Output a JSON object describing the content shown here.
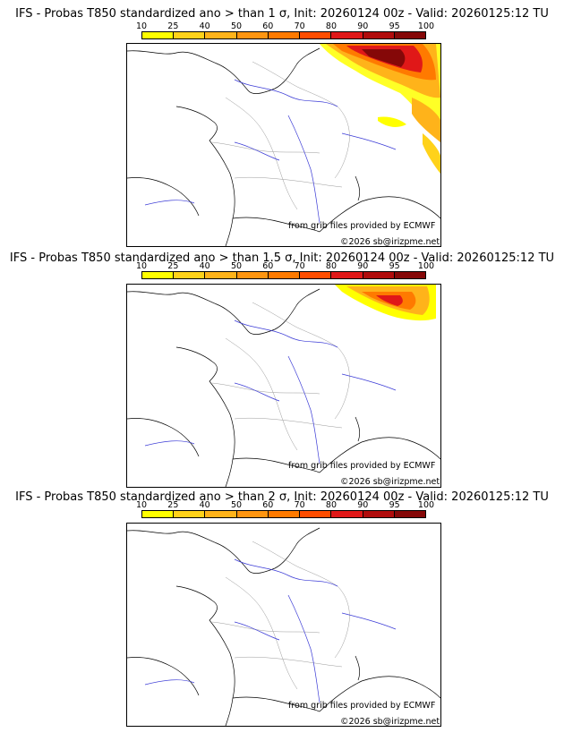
{
  "colorbar": {
    "ticks": [
      "10",
      "25",
      "40",
      "50",
      "60",
      "70",
      "80",
      "90",
      "95",
      "100"
    ],
    "colors": [
      "#ffff00",
      "#ffd21a",
      "#ffb31a",
      "#ff9510",
      "#ff7a00",
      "#ff4d00",
      "#e01818",
      "#b00c0c",
      "#850808"
    ]
  },
  "panels": [
    {
      "title": "IFS - Probas T850  standardized ano > than 1 σ, Init: 20260124 00z - Valid: 20260125:12 TU",
      "credit_source": "from grib files provided by ECMWF",
      "credit_copyright": "©2026 sb@irizpme.net"
    },
    {
      "title": "IFS - Probas T850  standardized ano > than 1.5 σ, Init: 20260124 00z - Valid: 20260125:12 TU",
      "credit_source": "from grib files provided by ECMWF",
      "credit_copyright": "©2026 sb@irizpme.net"
    },
    {
      "title": "IFS - Probas T850  standardized ano > than 2 σ, Init: 20260124 00z - Valid: 20260125:12 TU",
      "credit_source": "from grib files provided by ECMWF",
      "credit_copyright": "©2026 sb@irizpme.net"
    }
  ]
}
